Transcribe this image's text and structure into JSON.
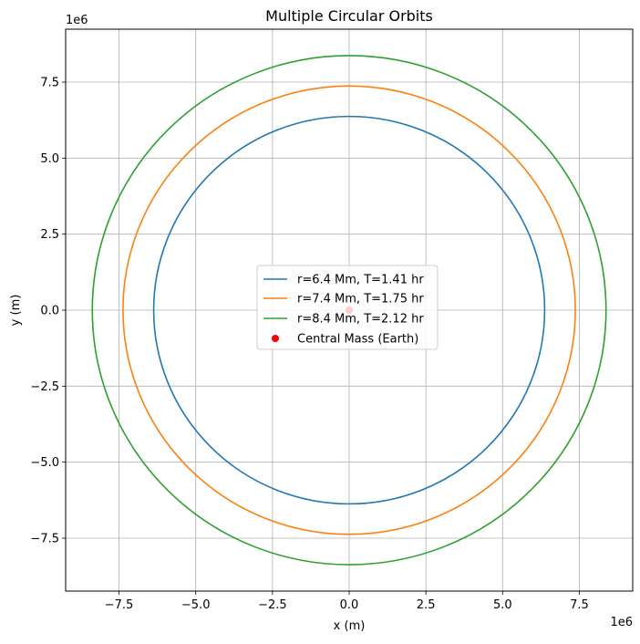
{
  "chart_data": {
    "type": "line",
    "title": "Multiple Circular Orbits",
    "xlabel": "x (m)",
    "ylabel": "y (m)",
    "x_offset_label": "1e6",
    "y_offset_label": "1e6",
    "xlim": [
      -9.24,
      9.24
    ],
    "ylim": [
      -9.24,
      9.24
    ],
    "x_ticks": [
      -7.5,
      -5.0,
      -2.5,
      0.0,
      2.5,
      5.0,
      7.5
    ],
    "y_ticks": [
      -7.5,
      -5.0,
      -2.5,
      0.0,
      2.5,
      5.0,
      7.5
    ],
    "x_tick_labels": [
      "−7.5",
      "−5.0",
      "−2.5",
      "0.0",
      "2.5",
      "5.0",
      "7.5"
    ],
    "y_tick_labels": [
      "−7.5",
      "−5.0",
      "−2.5",
      "0.0",
      "2.5",
      "5.0",
      "7.5"
    ],
    "grid": true,
    "legend_position": "center",
    "series": [
      {
        "name": "r=6.4 Mm, T=1.41 hr",
        "radius": 6.371,
        "color": "#1f77b4"
      },
      {
        "name": "r=7.4 Mm, T=1.75 hr",
        "radius": 7.371,
        "color": "#ff7f0e"
      },
      {
        "name": "r=8.4 Mm, T=2.12 hr",
        "radius": 8.371,
        "color": "#2ca02c"
      }
    ],
    "central_mass": {
      "name": "Central Mass (Earth)",
      "x": 0,
      "y": 0,
      "color": "#ff0000"
    }
  }
}
